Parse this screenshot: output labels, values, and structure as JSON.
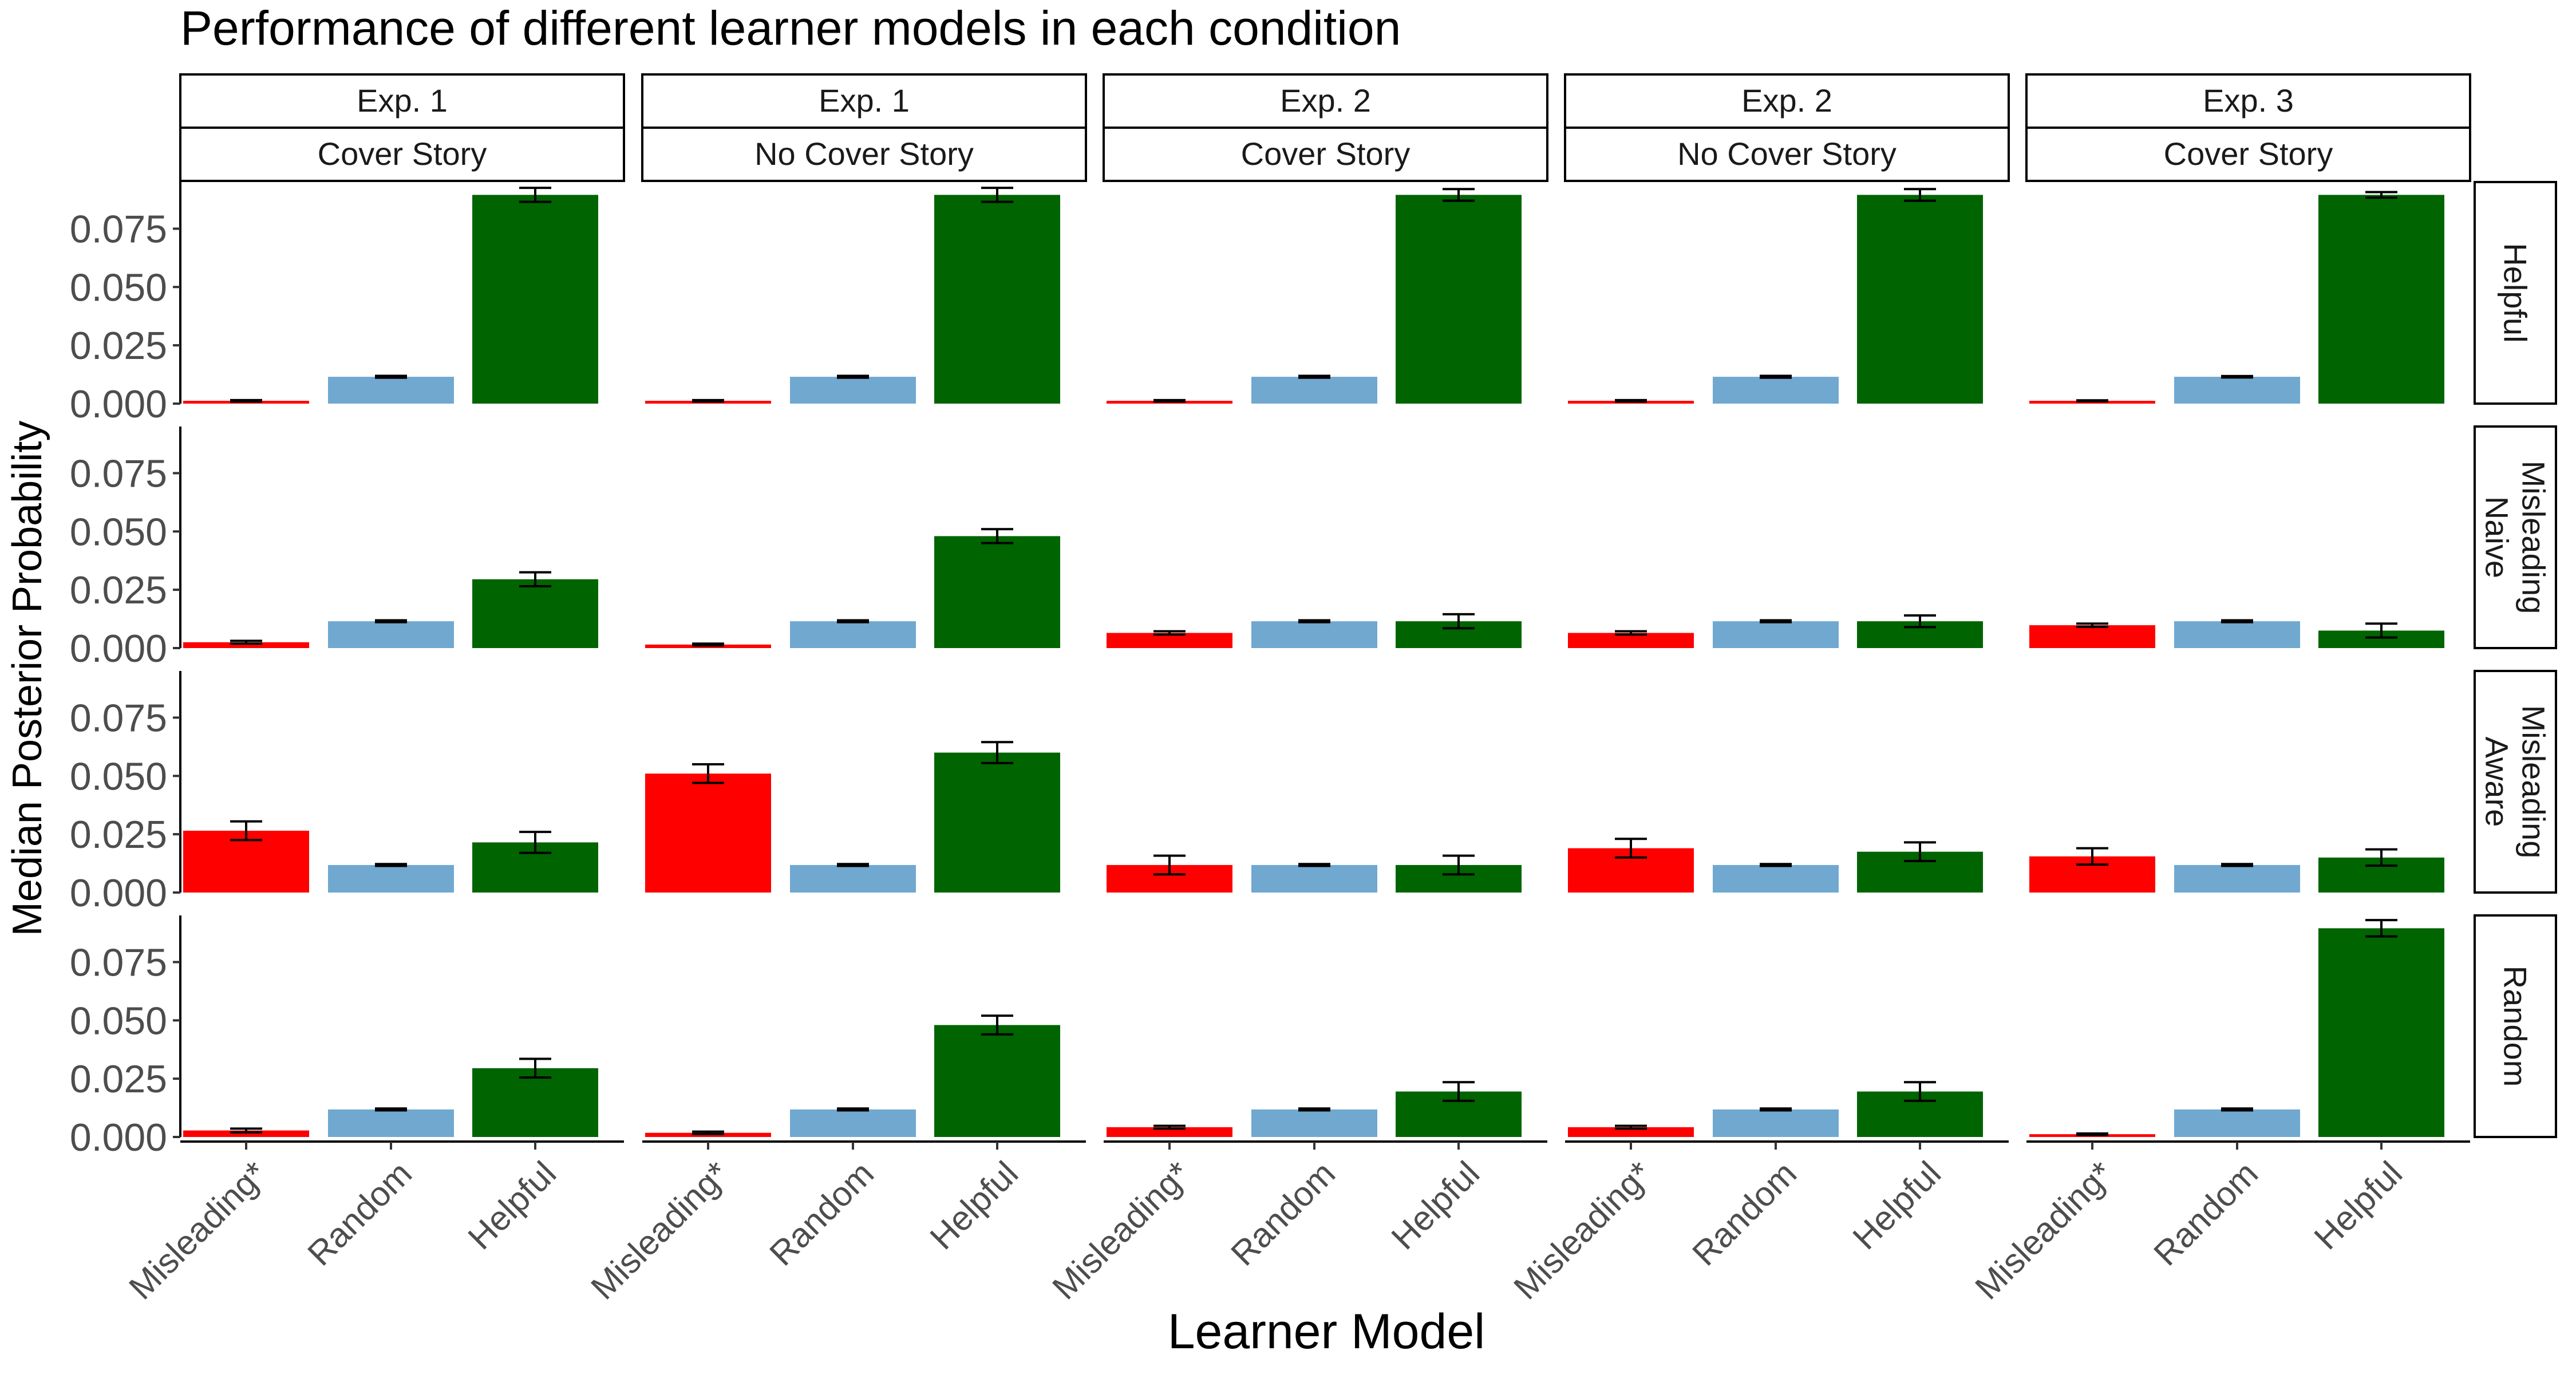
{
  "chart_data": {
    "type": "bar",
    "title": "Performance of different learner models in each condition",
    "xlabel": "Learner Model",
    "ylabel": "Median Posterior Probability",
    "categories": [
      "Misleading*",
      "Random",
      "Helpful"
    ],
    "ylim": [
      0,
      0.095
    ],
    "yticks": [
      "0.000",
      "0.025",
      "0.050",
      "0.075"
    ],
    "ytick_values": [
      0,
      0.025,
      0.05,
      0.075
    ],
    "grid": false,
    "colors": {
      "Misleading*": "#ff0000",
      "Random": "#70a8d0",
      "Helpful": "#006400"
    },
    "columns": [
      {
        "exp": "Exp. 1",
        "story": "Cover Story"
      },
      {
        "exp": "Exp. 1",
        "story": "No Cover Story"
      },
      {
        "exp": "Exp. 2",
        "story": "Cover Story"
      },
      {
        "exp": "Exp. 2",
        "story": "No Cover Story"
      },
      {
        "exp": "Exp. 3",
        "story": "Cover Story"
      }
    ],
    "rows": [
      {
        "label_lines": [
          "Helpful"
        ],
        "values": [
          [
            0.0012,
            0.0115,
            0.0895
          ],
          [
            0.0012,
            0.0115,
            0.0895
          ],
          [
            0.0012,
            0.0115,
            0.0895
          ],
          [
            0.0012,
            0.0115,
            0.0895
          ],
          [
            0.0012,
            0.0115,
            0.0895
          ]
        ],
        "errors": [
          [
            0.0003,
            0.0004,
            0.003
          ],
          [
            0.0003,
            0.0004,
            0.003
          ],
          [
            0.0003,
            0.0004,
            0.0025
          ],
          [
            0.0003,
            0.0004,
            0.0025
          ],
          [
            0.0002,
            0.0003,
            0.0012
          ]
        ]
      },
      {
        "label_lines": [
          "Misleading",
          "Naive"
        ],
        "values": [
          [
            0.0025,
            0.0115,
            0.0295
          ],
          [
            0.0015,
            0.0115,
            0.048
          ],
          [
            0.0065,
            0.0115,
            0.0115
          ],
          [
            0.0065,
            0.0115,
            0.0115
          ],
          [
            0.0098,
            0.0115,
            0.0075
          ]
        ],
        "errors": [
          [
            0.0006,
            0.0004,
            0.003
          ],
          [
            0.0004,
            0.0004,
            0.003
          ],
          [
            0.0007,
            0.0004,
            0.003
          ],
          [
            0.0007,
            0.0004,
            0.0025
          ],
          [
            0.0007,
            0.0004,
            0.003
          ]
        ]
      },
      {
        "label_lines": [
          "Misleading",
          "Aware"
        ],
        "values": [
          [
            0.0265,
            0.0118,
            0.0215
          ],
          [
            0.051,
            0.0118,
            0.06
          ],
          [
            0.0118,
            0.0118,
            0.0118
          ],
          [
            0.019,
            0.0118,
            0.0175
          ],
          [
            0.0155,
            0.0118,
            0.015
          ]
        ],
        "errors": [
          [
            0.004,
            0.0004,
            0.0045
          ],
          [
            0.004,
            0.0004,
            0.0045
          ],
          [
            0.004,
            0.0004,
            0.004
          ],
          [
            0.004,
            0.0004,
            0.004
          ],
          [
            0.0035,
            0.0004,
            0.0035
          ]
        ]
      },
      {
        "label_lines": [
          "Random"
        ],
        "values": [
          [
            0.0028,
            0.0118,
            0.0295
          ],
          [
            0.0018,
            0.0118,
            0.048
          ],
          [
            0.0042,
            0.0118,
            0.0195
          ],
          [
            0.0042,
            0.0118,
            0.0195
          ],
          [
            0.0012,
            0.0118,
            0.0895
          ]
        ],
        "errors": [
          [
            0.0008,
            0.0004,
            0.004
          ],
          [
            0.0005,
            0.0004,
            0.004
          ],
          [
            0.0006,
            0.0004,
            0.004
          ],
          [
            0.0006,
            0.0004,
            0.004
          ],
          [
            0.0003,
            0.0004,
            0.0035
          ]
        ]
      }
    ]
  }
}
